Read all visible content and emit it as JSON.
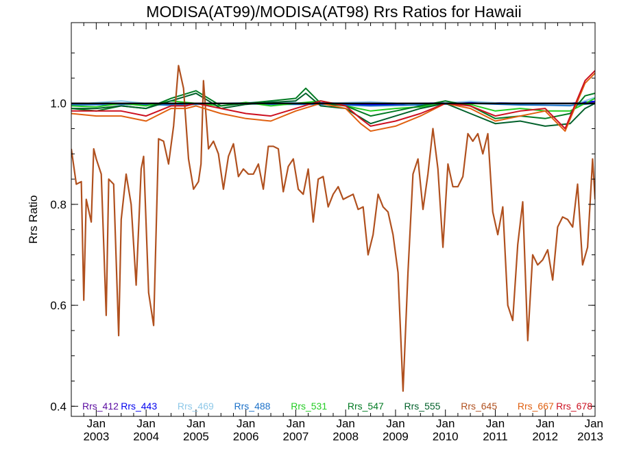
{
  "chart_data": {
    "type": "line",
    "title": "MODISA(AT99)/MODISA(AT98)  Rrs Ratios for Hawaii",
    "xlabel": "",
    "ylabel": "Rrs Ratio",
    "xlim": [
      2002.5,
      2013.0
    ],
    "ylim": [
      0.38,
      1.16
    ],
    "x_ticks": [
      {
        "x": 2003,
        "line1": "Jan",
        "line2": "2003"
      },
      {
        "x": 2004,
        "line1": "Jan",
        "line2": "2004"
      },
      {
        "x": 2005,
        "line1": "Jan",
        "line2": "2005"
      },
      {
        "x": 2006,
        "line1": "Jan",
        "line2": "2006"
      },
      {
        "x": 2007,
        "line1": "Jan",
        "line2": "2007"
      },
      {
        "x": 2008,
        "line1": "Jan",
        "line2": "2008"
      },
      {
        "x": 2009,
        "line1": "Jan",
        "line2": "2009"
      },
      {
        "x": 2010,
        "line1": "Jan",
        "line2": "2010"
      },
      {
        "x": 2011,
        "line1": "Jan",
        "line2": "2011"
      },
      {
        "x": 2012,
        "line1": "Jan",
        "line2": "2012"
      },
      {
        "x": 2013,
        "line1": "Jan",
        "line2": "2013"
      }
    ],
    "y_ticks": [
      {
        "v": 0.4,
        "label": "0.4"
      },
      {
        "v": 0.6,
        "label": "0.6"
      },
      {
        "v": 0.8,
        "label": "0.8"
      },
      {
        "v": 1.0,
        "label": "1.0"
      }
    ],
    "reference_line": 1.0,
    "grid": false,
    "legend_position": "bottom",
    "series": [
      {
        "name": "Rrs_412",
        "color": "#5a0aa0",
        "x": [
          2002.5,
          2003.5,
          2004.5,
          2005.5,
          2006.5,
          2007.5,
          2008.5,
          2009.5,
          2010.5,
          2011.5,
          2012.5,
          2013.0
        ],
        "y": [
          1.0,
          1.0,
          1.0,
          1.0,
          1.0,
          1.001,
          1.0,
          1.0,
          1.001,
          1.0,
          1.0,
          1.001
        ]
      },
      {
        "name": "Rrs_443",
        "color": "#0000ee",
        "x": [
          2002.5,
          2003.5,
          2004.5,
          2005.5,
          2006.5,
          2007.5,
          2008.5,
          2009.5,
          2010.5,
          2011.5,
          2012.5,
          2013.0
        ],
        "y": [
          1.0,
          1.0,
          1.0,
          1.0,
          1.0,
          1.0,
          0.997,
          1.0,
          1.002,
          1.0,
          1.0,
          1.004
        ]
      },
      {
        "name": "Rrs_469",
        "color": "#8ec8e8",
        "x": [
          2002.5,
          2003.5,
          2004.5,
          2005.5,
          2006.5,
          2007.5,
          2008.5,
          2009.5,
          2010.5,
          2011.5,
          2012.5,
          2013.0
        ],
        "y": [
          0.998,
          1.005,
          0.995,
          1.0,
          1.003,
          1.0,
          1.003,
          0.998,
          1.004,
          0.998,
          0.995,
          1.012
        ]
      },
      {
        "name": "Rrs_488",
        "color": "#1a70c8",
        "x": [
          2002.5,
          2003.5,
          2004.5,
          2005.5,
          2006.5,
          2007.5,
          2008.5,
          2009.5,
          2010.5,
          2011.5,
          2012.5,
          2013.0
        ],
        "y": [
          0.997,
          0.998,
          0.997,
          1.0,
          0.998,
          0.998,
          0.995,
          0.997,
          1.0,
          0.997,
          0.996,
          1.0
        ]
      },
      {
        "name": "Rrs_531",
        "color": "#22cc22",
        "x": [
          2002.5,
          2003.0,
          2003.5,
          2004.0,
          2004.5,
          2005.0,
          2005.5,
          2006.0,
          2006.5,
          2007.0,
          2007.5,
          2008.0,
          2008.5,
          2009.0,
          2009.5,
          2010.0,
          2010.5,
          2011.0,
          2011.5,
          2012.0,
          2012.5,
          2013.0
        ],
        "y": [
          0.995,
          0.993,
          1.0,
          0.995,
          1.005,
          1.0,
          0.995,
          1.002,
          0.995,
          1.0,
          1.005,
          0.995,
          0.985,
          0.99,
          0.993,
          1.0,
          0.998,
          0.985,
          0.99,
          0.985,
          0.985,
          1.01
        ]
      },
      {
        "name": "Rrs_547",
        "color": "#007a22",
        "x": [
          2002.5,
          2003.0,
          2003.5,
          2004.0,
          2004.5,
          2005.0,
          2005.5,
          2006.0,
          2006.5,
          2007.0,
          2007.2,
          2007.5,
          2008.0,
          2008.5,
          2009.0,
          2009.5,
          2010.0,
          2010.5,
          2011.0,
          2011.5,
          2012.0,
          2012.5,
          2012.8,
          2013.0
        ],
        "y": [
          0.99,
          0.985,
          0.995,
          0.99,
          1.01,
          1.025,
          0.995,
          1.0,
          1.005,
          1.01,
          1.03,
          1.0,
          0.995,
          0.975,
          0.985,
          0.995,
          1.005,
          0.995,
          0.97,
          0.975,
          0.97,
          0.98,
          1.015,
          1.02
        ]
      },
      {
        "name": "Rrs_555",
        "color": "#00602a",
        "x": [
          2002.5,
          2003.0,
          2003.5,
          2004.0,
          2004.5,
          2005.0,
          2005.5,
          2006.0,
          2006.5,
          2007.0,
          2007.2,
          2007.5,
          2008.0,
          2008.5,
          2009.0,
          2009.5,
          2010.0,
          2010.5,
          2011.0,
          2011.5,
          2012.0,
          2012.5,
          2012.8,
          2013.0
        ],
        "y": [
          0.99,
          0.99,
          0.995,
          0.99,
          1.005,
          1.02,
          0.99,
          0.998,
          1.002,
          1.005,
          1.02,
          0.995,
          0.99,
          0.96,
          0.975,
          0.99,
          1.0,
          0.98,
          0.96,
          0.965,
          0.955,
          0.96,
          0.99,
          1.0
        ]
      },
      {
        "name": "Rrs_645",
        "color": "#b0501e",
        "x": [
          2002.5,
          2002.6,
          2002.7,
          2002.75,
          2002.8,
          2002.9,
          2002.95,
          2003.0,
          2003.1,
          2003.2,
          2003.25,
          2003.35,
          2003.45,
          2003.5,
          2003.6,
          2003.7,
          2003.8,
          2003.9,
          2003.95,
          2004.05,
          2004.15,
          2004.25,
          2004.35,
          2004.45,
          2004.55,
          2004.65,
          2004.75,
          2004.85,
          2004.95,
          2005.05,
          2005.1,
          2005.15,
          2005.25,
          2005.35,
          2005.45,
          2005.55,
          2005.65,
          2005.75,
          2005.85,
          2005.95,
          2006.05,
          2006.15,
          2006.25,
          2006.35,
          2006.45,
          2006.55,
          2006.65,
          2006.75,
          2006.85,
          2006.95,
          2007.05,
          2007.15,
          2007.25,
          2007.35,
          2007.45,
          2007.55,
          2007.65,
          2007.75,
          2007.85,
          2007.95,
          2008.05,
          2008.15,
          2008.25,
          2008.35,
          2008.45,
          2008.55,
          2008.65,
          2008.75,
          2008.85,
          2008.95,
          2009.05,
          2009.15,
          2009.25,
          2009.35,
          2009.45,
          2009.55,
          2009.65,
          2009.75,
          2009.85,
          2009.95,
          2010.05,
          2010.15,
          2010.25,
          2010.35,
          2010.45,
          2010.55,
          2010.65,
          2010.75,
          2010.85,
          2010.95,
          2011.05,
          2011.15,
          2011.25,
          2011.35,
          2011.45,
          2011.55,
          2011.65,
          2011.75,
          2011.85,
          2011.95,
          2012.05,
          2012.15,
          2012.25,
          2012.35,
          2012.45,
          2012.55,
          2012.65,
          2012.75,
          2012.85,
          2012.95,
          2013.0
        ],
        "y": [
          0.91,
          0.84,
          0.845,
          0.61,
          0.81,
          0.765,
          0.91,
          0.89,
          0.86,
          0.58,
          0.85,
          0.84,
          0.54,
          0.77,
          0.86,
          0.8,
          0.64,
          0.87,
          0.895,
          0.625,
          0.56,
          0.93,
          0.925,
          0.88,
          0.955,
          1.075,
          1.03,
          0.89,
          0.83,
          0.845,
          0.88,
          1.045,
          0.91,
          0.925,
          0.9,
          0.83,
          0.895,
          0.92,
          0.855,
          0.87,
          0.86,
          0.86,
          0.88,
          0.83,
          0.915,
          0.915,
          0.91,
          0.825,
          0.875,
          0.89,
          0.83,
          0.82,
          0.87,
          0.765,
          0.85,
          0.855,
          0.795,
          0.82,
          0.835,
          0.81,
          0.815,
          0.82,
          0.79,
          0.795,
          0.7,
          0.74,
          0.82,
          0.795,
          0.785,
          0.74,
          0.665,
          0.43,
          0.665,
          0.86,
          0.89,
          0.79,
          0.86,
          0.95,
          0.87,
          0.715,
          0.88,
          0.835,
          0.835,
          0.855,
          0.94,
          0.925,
          0.94,
          0.9,
          0.94,
          0.785,
          0.74,
          0.795,
          0.6,
          0.57,
          0.72,
          0.805,
          0.53,
          0.7,
          0.68,
          0.69,
          0.71,
          0.65,
          0.755,
          0.775,
          0.77,
          0.755,
          0.84,
          0.68,
          0.715,
          0.89,
          0.81
        ]
      },
      {
        "name": "Rrs_667",
        "color": "#e06010",
        "x": [
          2002.5,
          2003.0,
          2003.5,
          2004.0,
          2004.5,
          2004.8,
          2005.0,
          2005.5,
          2006.0,
          2006.5,
          2007.0,
          2007.5,
          2008.0,
          2008.3,
          2008.5,
          2009.0,
          2009.5,
          2010.0,
          2010.5,
          2011.0,
          2011.5,
          2012.0,
          2012.4,
          2012.8,
          2013.0
        ],
        "y": [
          0.98,
          0.975,
          0.975,
          0.965,
          0.99,
          0.99,
          0.995,
          0.98,
          0.97,
          0.965,
          0.985,
          1.0,
          0.99,
          0.96,
          0.945,
          0.955,
          0.975,
          1.0,
          0.99,
          0.965,
          0.975,
          0.985,
          0.945,
          1.04,
          1.06
        ]
      },
      {
        "name": "Rrs_678",
        "color": "#cc1020",
        "x": [
          2002.5,
          2003.0,
          2003.5,
          2004.0,
          2004.5,
          2004.8,
          2005.0,
          2005.5,
          2006.0,
          2006.5,
          2007.0,
          2007.5,
          2008.0,
          2008.3,
          2008.5,
          2009.0,
          2009.5,
          2010.0,
          2010.5,
          2011.0,
          2011.5,
          2012.0,
          2012.4,
          2012.8,
          2013.0
        ],
        "y": [
          0.985,
          0.985,
          0.985,
          0.975,
          0.995,
          0.995,
          1.0,
          0.99,
          0.98,
          0.975,
          0.99,
          1.005,
          0.995,
          0.97,
          0.955,
          0.965,
          0.98,
          1.0,
          0.995,
          0.975,
          0.985,
          0.99,
          0.95,
          1.045,
          1.065
        ]
      }
    ]
  }
}
